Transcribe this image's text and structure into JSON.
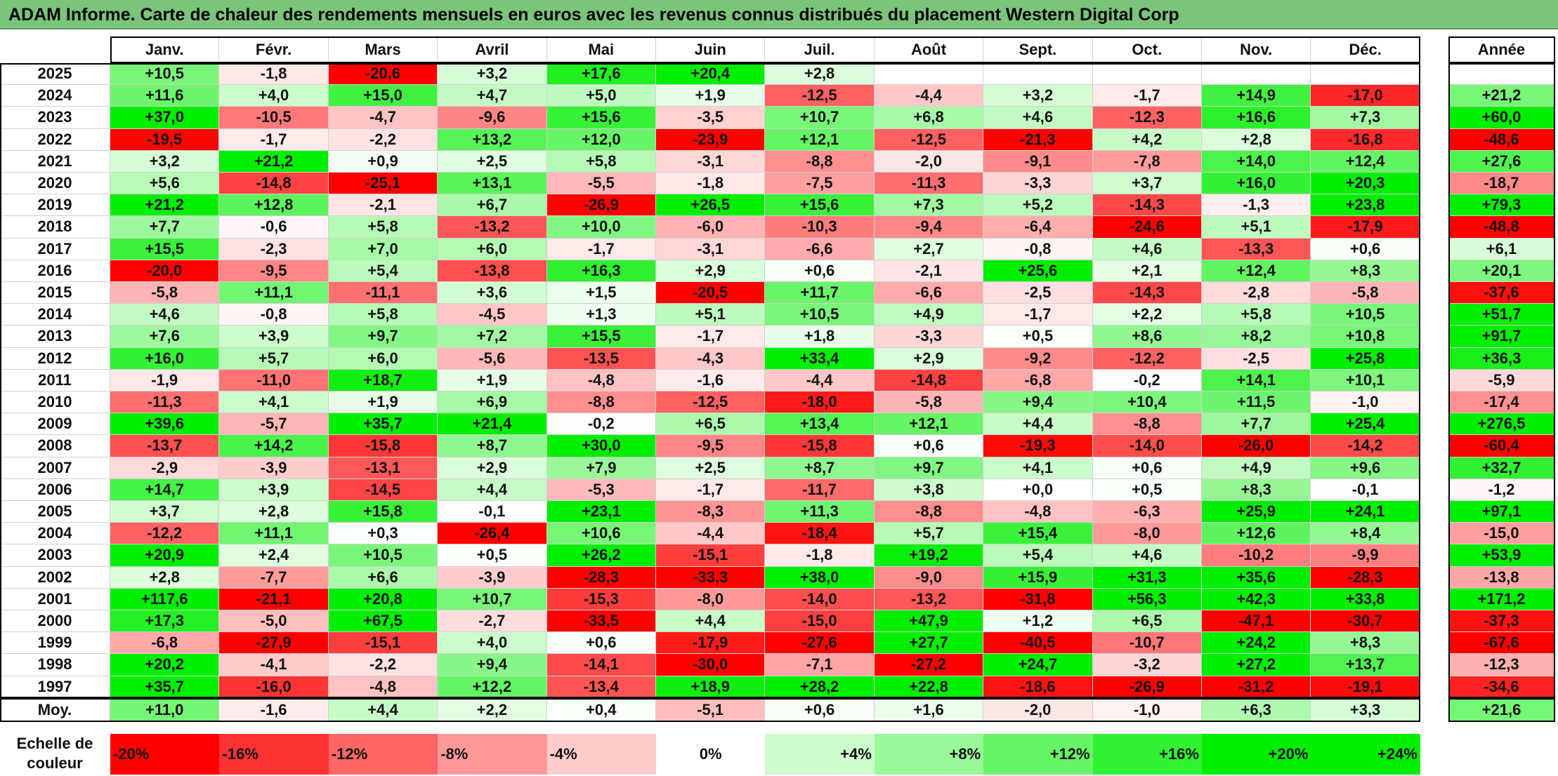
{
  "title": "ADAM Informe. Carte de chaleur des rendements mensuels en euros avec les revenus connus distribués du placement Western Digital Corp",
  "chart_data": {
    "type": "heatmap",
    "title": "ADAM Informe. Carte de chaleur des rendements mensuels en euros avec les revenus connus distribués du placement Western Digital Corp",
    "columns": [
      "Janv.",
      "Févr.",
      "Mars",
      "Avril",
      "Mai",
      "Juin",
      "Juil.",
      "Août",
      "Sept.",
      "Oct.",
      "Nov.",
      "Déc."
    ],
    "annual_header": "Année",
    "rows": [
      {
        "year": "2025",
        "values": [
          "+10,5",
          "-1,8",
          "-20,6",
          "+3,2",
          "+17,6",
          "+20,4",
          "+2,8",
          "",
          "",
          "",
          "",
          ""
        ],
        "annual": ""
      },
      {
        "year": "2024",
        "values": [
          "+11,6",
          "+4,0",
          "+15,0",
          "+4,7",
          "+5,0",
          "+1,9",
          "-12,5",
          "-4,4",
          "+3,2",
          "-1,7",
          "+14,9",
          "-17,0"
        ],
        "annual": "+21,2"
      },
      {
        "year": "2023",
        "values": [
          "+37,0",
          "-10,5",
          "-4,7",
          "-9,6",
          "+15,6",
          "-3,5",
          "+10,7",
          "+6,8",
          "+4,6",
          "-12,3",
          "+16,6",
          "+7,3"
        ],
        "annual": "+60,0"
      },
      {
        "year": "2022",
        "values": [
          "-19,5",
          "-1,7",
          "-2,2",
          "+13,2",
          "+12,0",
          "-23,9",
          "+12,1",
          "-12,5",
          "-21,3",
          "+4,2",
          "+2,8",
          "-16,8"
        ],
        "annual": "-48,6"
      },
      {
        "year": "2021",
        "values": [
          "+3,2",
          "+21,2",
          "+0,9",
          "+2,5",
          "+5,8",
          "-3,1",
          "-8,8",
          "-2,0",
          "-9,1",
          "-7,8",
          "+14,0",
          "+12,4"
        ],
        "annual": "+27,6"
      },
      {
        "year": "2020",
        "values": [
          "+5,6",
          "-14,8",
          "-25,1",
          "+13,1",
          "-5,5",
          "-1,8",
          "-7,5",
          "-11,3",
          "-3,3",
          "+3,7",
          "+16,0",
          "+20,3"
        ],
        "annual": "-18,7"
      },
      {
        "year": "2019",
        "values": [
          "+21,2",
          "+12,8",
          "-2,1",
          "+6,7",
          "-26,9",
          "+26,5",
          "+15,6",
          "+7,3",
          "+5,2",
          "-14,3",
          "-1,3",
          "+23,8"
        ],
        "annual": "+79,3"
      },
      {
        "year": "2018",
        "values": [
          "+7,7",
          "-0,6",
          "+5,8",
          "-13,2",
          "+10,0",
          "-6,0",
          "-10,3",
          "-9,4",
          "-6,4",
          "-24,6",
          "+5,1",
          "-17,9"
        ],
        "annual": "-48,8"
      },
      {
        "year": "2017",
        "values": [
          "+15,5",
          "-2,3",
          "+7,0",
          "+6,0",
          "-1,7",
          "-3,1",
          "-6,6",
          "+2,7",
          "-0,8",
          "+4,6",
          "-13,3",
          "+0,6"
        ],
        "annual": "+6,1"
      },
      {
        "year": "2016",
        "values": [
          "-20,0",
          "-9,5",
          "+5,4",
          "-13,8",
          "+16,3",
          "+2,9",
          "+0,6",
          "-2,1",
          "+25,6",
          "+2,1",
          "+12,4",
          "+8,3"
        ],
        "annual": "+20,1"
      },
      {
        "year": "2015",
        "values": [
          "-5,8",
          "+11,1",
          "-11,1",
          "+3,6",
          "+1,5",
          "-20,5",
          "+11,7",
          "-6,6",
          "-2,5",
          "-14,3",
          "-2,8",
          "-5,8"
        ],
        "annual": "-37,6"
      },
      {
        "year": "2014",
        "values": [
          "+4,6",
          "-0,8",
          "+5,8",
          "-4,5",
          "+1,3",
          "+5,1",
          "+10,5",
          "+4,9",
          "-1,7",
          "+2,2",
          "+5,8",
          "+10,5"
        ],
        "annual": "+51,7"
      },
      {
        "year": "2013",
        "values": [
          "+7,6",
          "+3,9",
          "+9,7",
          "+7,2",
          "+15,5",
          "-1,7",
          "+1,8",
          "-3,3",
          "+0,5",
          "+8,6",
          "+8,2",
          "+10,8"
        ],
        "annual": "+91,7"
      },
      {
        "year": "2012",
        "values": [
          "+16,0",
          "+5,7",
          "+6,0",
          "-5,6",
          "-13,5",
          "-4,3",
          "+33,4",
          "+2,9",
          "-9,2",
          "-12,2",
          "-2,5",
          "+25,8"
        ],
        "annual": "+36,3"
      },
      {
        "year": "2011",
        "values": [
          "-1,9",
          "-11,0",
          "+18,7",
          "+1,9",
          "-4,8",
          "-1,6",
          "-4,4",
          "-14,8",
          "-6,8",
          "-0,2",
          "+14,1",
          "+10,1"
        ],
        "annual": "-5,9"
      },
      {
        "year": "2010",
        "values": [
          "-11,3",
          "+4,1",
          "+1,9",
          "+6,9",
          "-8,8",
          "-12,5",
          "-18,0",
          "-5,8",
          "+9,4",
          "+10,4",
          "+11,5",
          "-1,0"
        ],
        "annual": "-17,4"
      },
      {
        "year": "2009",
        "values": [
          "+39,6",
          "-5,7",
          "+35,7",
          "+21,4",
          "-0,2",
          "+6,5",
          "+13,4",
          "+12,1",
          "+4,4",
          "-8,8",
          "+7,7",
          "+25,4"
        ],
        "annual": "+276,5"
      },
      {
        "year": "2008",
        "values": [
          "-13,7",
          "+14,2",
          "-15,8",
          "+8,7",
          "+30,0",
          "-9,5",
          "-15,8",
          "+0,6",
          "-19,3",
          "-14,0",
          "-26,0",
          "-14,2"
        ],
        "annual": "-60,4"
      },
      {
        "year": "2007",
        "values": [
          "-2,9",
          "-3,9",
          "-13,1",
          "+2,9",
          "+7,9",
          "+2,5",
          "+8,7",
          "+9,7",
          "+4,1",
          "+0,6",
          "+4,9",
          "+9,6"
        ],
        "annual": "+32,7"
      },
      {
        "year": "2006",
        "values": [
          "+14,7",
          "+3,9",
          "-14,5",
          "+4,4",
          "-5,3",
          "-1,7",
          "-11,7",
          "+3,8",
          "+0,0",
          "+0,5",
          "+8,3",
          "-0,1"
        ],
        "annual": "-1,2"
      },
      {
        "year": "2005",
        "values": [
          "+3,7",
          "+2,8",
          "+15,8",
          "-0,1",
          "+23,1",
          "-8,3",
          "+11,3",
          "-8,8",
          "-4,8",
          "-6,3",
          "+25,9",
          "+24,1"
        ],
        "annual": "+97,1"
      },
      {
        "year": "2004",
        "values": [
          "-12,2",
          "+11,1",
          "+0,3",
          "-26,4",
          "+10,6",
          "-4,4",
          "-18,4",
          "+5,7",
          "+15,4",
          "-8,0",
          "+12,6",
          "+8,4"
        ],
        "annual": "-15,0"
      },
      {
        "year": "2003",
        "values": [
          "+20,9",
          "+2,4",
          "+10,5",
          "+0,5",
          "+26,2",
          "-15,1",
          "-1,8",
          "+19,2",
          "+5,4",
          "+4,6",
          "-10,2",
          "-9,9"
        ],
        "annual": "+53,9"
      },
      {
        "year": "2002",
        "values": [
          "+2,8",
          "-7,7",
          "+6,6",
          "-3,9",
          "-28,3",
          "-33,3",
          "+38,0",
          "-9,0",
          "+15,9",
          "+31,3",
          "+35,6",
          "-28,3"
        ],
        "annual": "-13,8"
      },
      {
        "year": "2001",
        "values": [
          "+117,6",
          "-21,1",
          "+20,8",
          "+10,7",
          "-15,3",
          "-8,0",
          "-14,0",
          "-13,2",
          "-31,8",
          "+56,3",
          "+42,3",
          "+33,8"
        ],
        "annual": "+171,2"
      },
      {
        "year": "2000",
        "values": [
          "+17,3",
          "-5,0",
          "+67,5",
          "-2,7",
          "-33,5",
          "+4,4",
          "-15,0",
          "+47,9",
          "+1,2",
          "+6,5",
          "-47,1",
          "-30,7"
        ],
        "annual": "-37,3"
      },
      {
        "year": "1999",
        "values": [
          "-6,8",
          "-27,9",
          "-15,1",
          "+4,0",
          "+0,6",
          "-17,9",
          "-27,6",
          "+27,7",
          "-40,5",
          "-10,7",
          "+24,2",
          "+8,3"
        ],
        "annual": "-67,6"
      },
      {
        "year": "1998",
        "values": [
          "+20,2",
          "-4,1",
          "-2,2",
          "+9,4",
          "-14,1",
          "-30,0",
          "-7,1",
          "-27,2",
          "+24,7",
          "-3,2",
          "+27,2",
          "+13,7"
        ],
        "annual": "-12,3"
      },
      {
        "year": "1997",
        "values": [
          "+35,7",
          "-16,0",
          "-4,8",
          "+12,2",
          "-13,4",
          "+18,9",
          "+28,2",
          "+22,8",
          "-18,6",
          "-26,9",
          "-31,2",
          "-19,1"
        ],
        "annual": "-34,6"
      }
    ],
    "average": {
      "label": "Moy.",
      "values": [
        "+11,0",
        "-1,6",
        "+4,4",
        "+2,2",
        "+0,4",
        "-5,1",
        "+0,6",
        "+1,6",
        "-2,0",
        "-1,0",
        "+6,3",
        "+3,3"
      ],
      "annual": "+21,6"
    },
    "scale": {
      "label": "Echelle de couleur",
      "steps": [
        "-20%",
        "-16%",
        "-12%",
        "-8%",
        "-4%",
        "0%",
        "+4%",
        "+8%",
        "+12%",
        "+16%",
        "+20%",
        "+24%"
      ]
    },
    "colors": {
      "negative_max": "#ff0000",
      "neutral": "#ffffff",
      "positive_max": "#00ee00"
    }
  }
}
